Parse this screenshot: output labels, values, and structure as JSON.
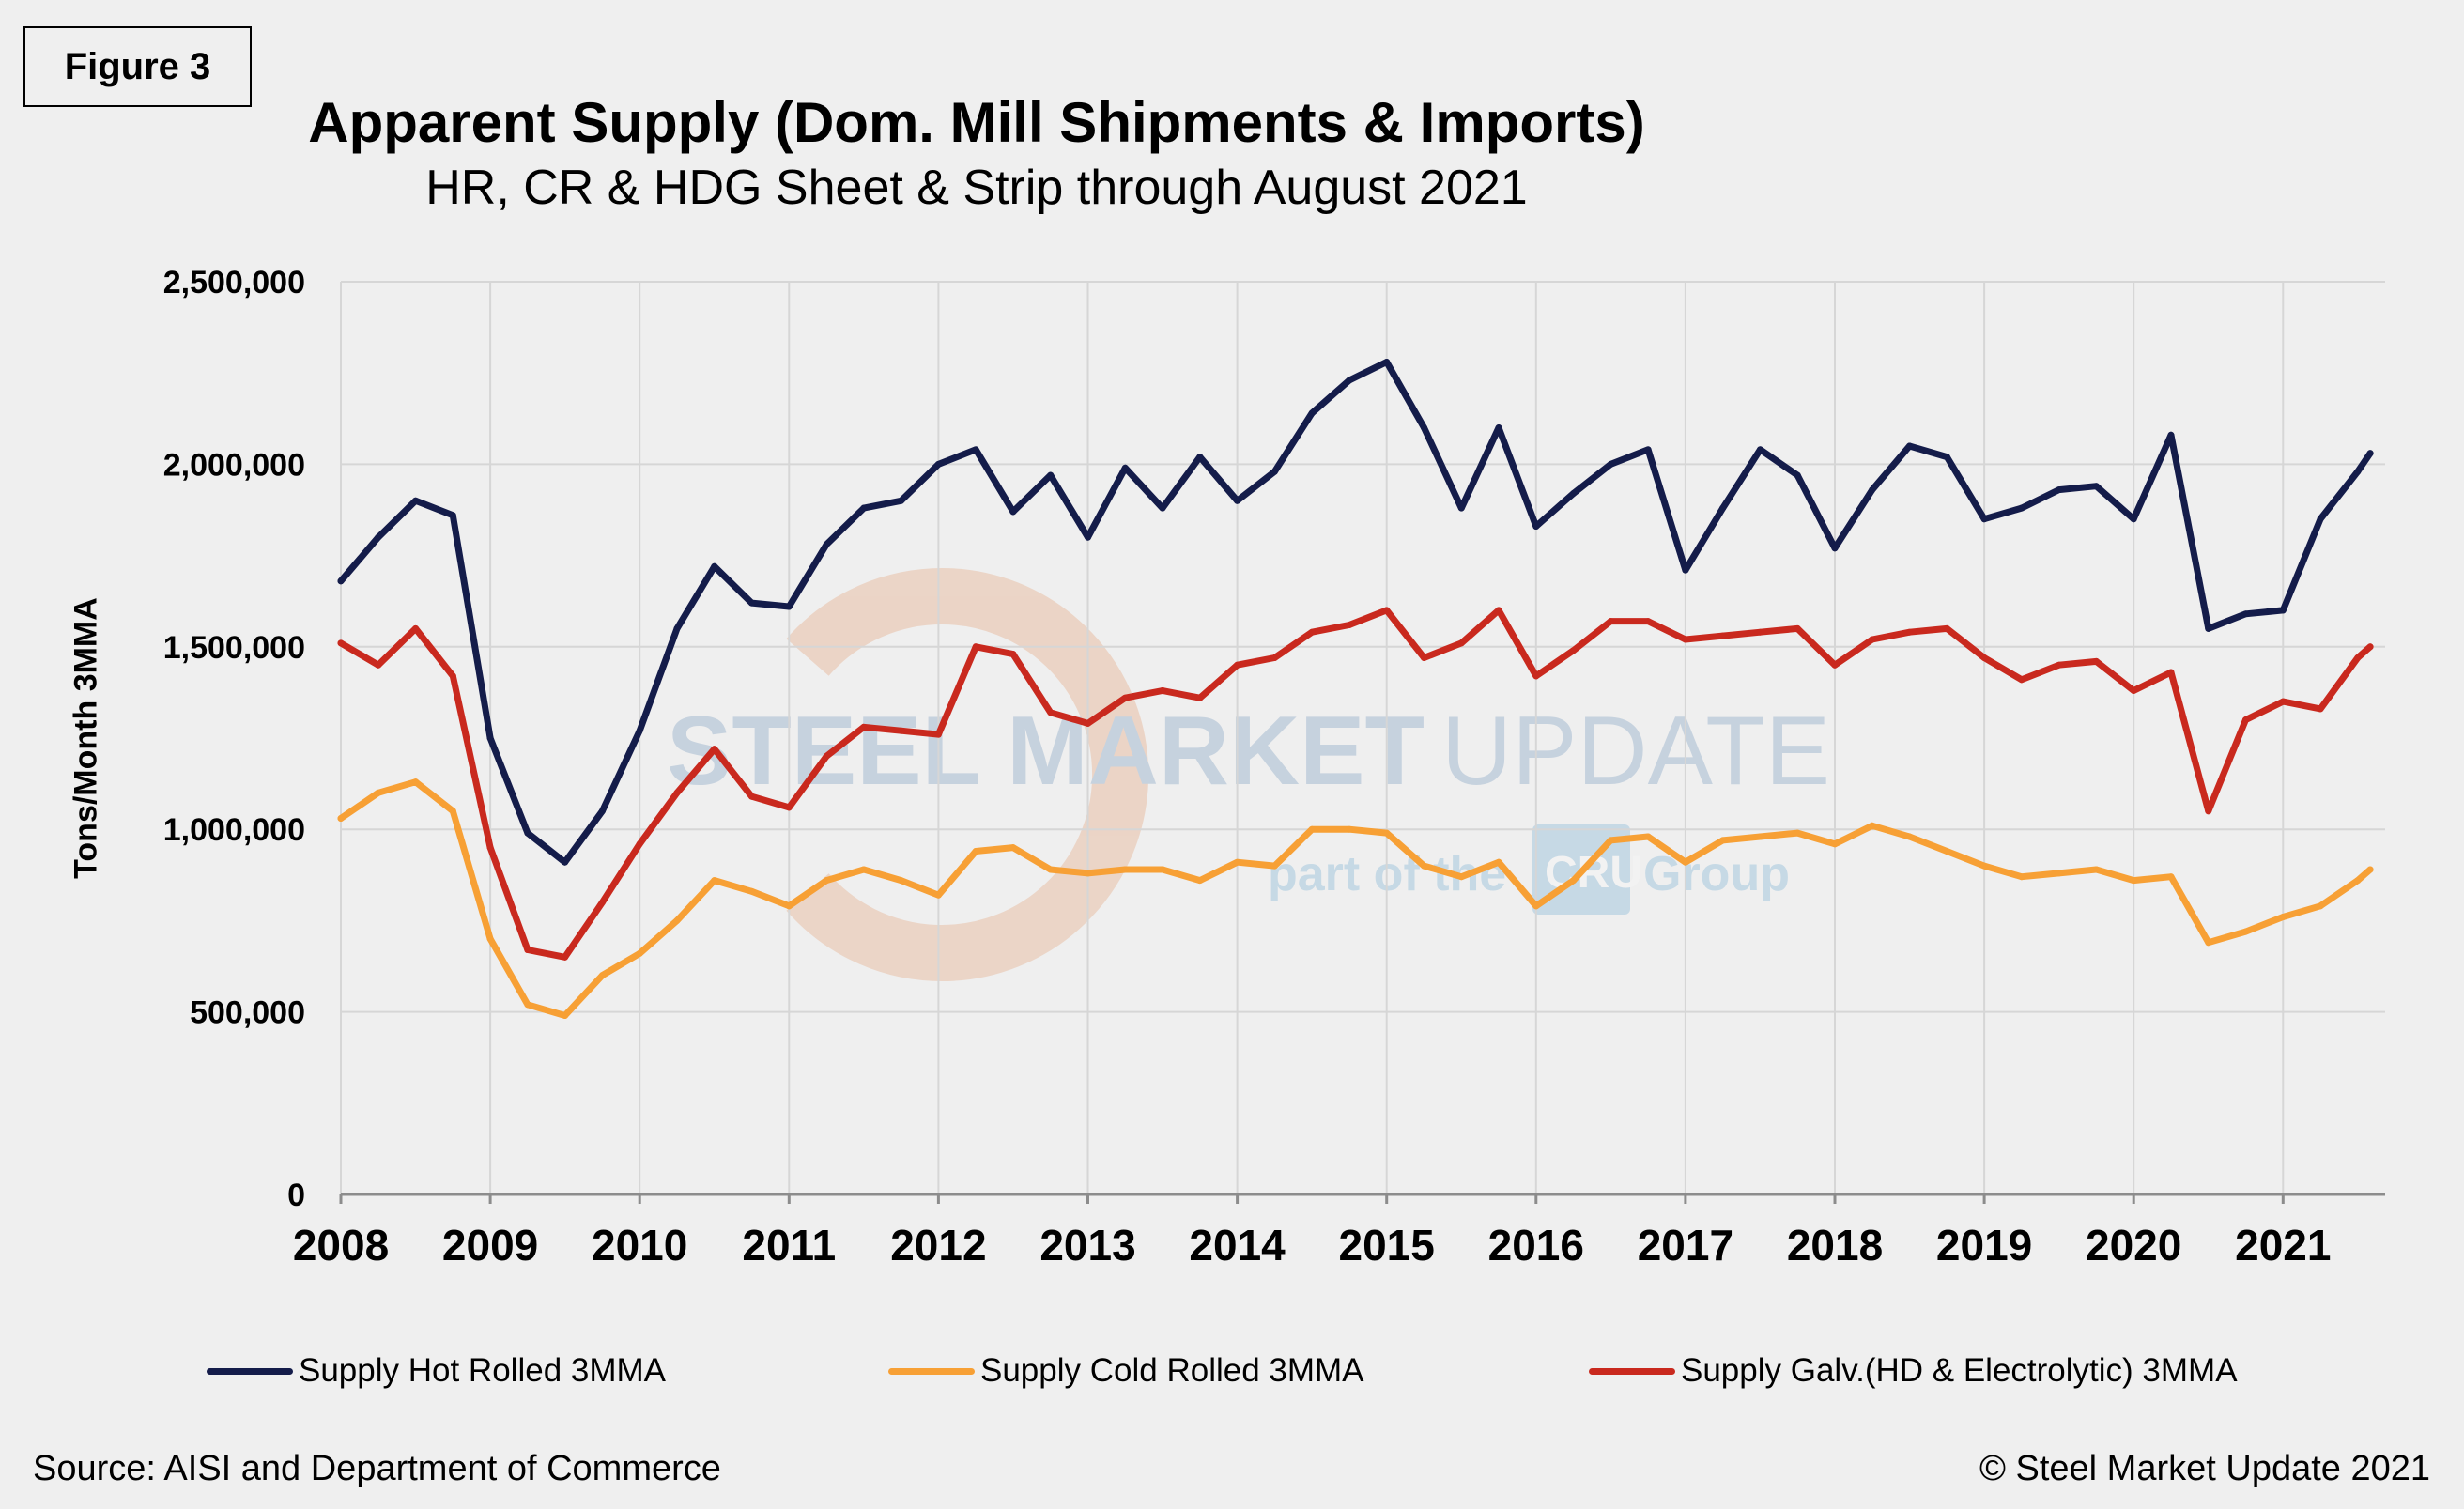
{
  "figure_label": "Figure 3",
  "source": "Source: AISI and Department of Commerce",
  "copyright": "© Steel Market Update 2021",
  "watermark": {
    "line1_bold": "STEEL MARKET",
    "line1_light": "UPDATE",
    "line2_a": "part of the",
    "line2_logo": "CRU",
    "line2_b": "Group"
  },
  "chart_data": {
    "type": "line",
    "title": "Apparent Supply (Dom. Mill Shipments & Imports)",
    "subtitle": "HR, CR & HDG Sheet & Strip through August 2021",
    "xlabel": "",
    "ylabel": "Tons/Month 3MMA",
    "ylim": [
      0,
      2500000
    ],
    "yticks": [
      "0",
      "500,000",
      "1,000,000",
      "1,500,000",
      "2,000,000",
      "2,500,000"
    ],
    "xticks": [
      "2008",
      "2009",
      "2010",
      "2011",
      "2012",
      "2013",
      "2014",
      "2015",
      "2016",
      "2017",
      "2018",
      "2019",
      "2020",
      "2021"
    ],
    "grid": true,
    "legend_position": "bottom",
    "x": [
      "2008-01",
      "2008-04",
      "2008-07",
      "2008-10",
      "2009-01",
      "2009-04",
      "2009-07",
      "2009-10",
      "2010-01",
      "2010-04",
      "2010-07",
      "2010-10",
      "2011-01",
      "2011-04",
      "2011-07",
      "2011-10",
      "2012-01",
      "2012-04",
      "2012-07",
      "2012-10",
      "2013-01",
      "2013-04",
      "2013-07",
      "2013-10",
      "2014-01",
      "2014-04",
      "2014-07",
      "2014-10",
      "2015-01",
      "2015-04",
      "2015-07",
      "2015-10",
      "2016-01",
      "2016-04",
      "2016-07",
      "2016-10",
      "2017-01",
      "2017-04",
      "2017-07",
      "2017-10",
      "2018-01",
      "2018-04",
      "2018-07",
      "2018-10",
      "2019-01",
      "2019-04",
      "2019-07",
      "2019-10",
      "2020-01",
      "2020-04",
      "2020-07",
      "2020-10",
      "2021-01",
      "2021-04",
      "2021-07",
      "2021-08"
    ],
    "series": [
      {
        "name": "Supply Hot Rolled 3MMA",
        "color": "#141c4a",
        "values": [
          1680000,
          1800000,
          1900000,
          1860000,
          1250000,
          990000,
          910000,
          1050000,
          1270000,
          1550000,
          1720000,
          1620000,
          1610000,
          1780000,
          1880000,
          1900000,
          2000000,
          2040000,
          1870000,
          1970000,
          1800000,
          1990000,
          1880000,
          2020000,
          1900000,
          1980000,
          2140000,
          2230000,
          2280000,
          2100000,
          1880000,
          2100000,
          1830000,
          1920000,
          2000000,
          2040000,
          1710000,
          1880000,
          2040000,
          1970000,
          1770000,
          1930000,
          2050000,
          2020000,
          1850000,
          1880000,
          1930000,
          1940000,
          1850000,
          2080000,
          1550000,
          1590000,
          1600000,
          1850000,
          1980000,
          2030000
        ]
      },
      {
        "name": "Supply Cold Rolled 3MMA",
        "color": "#f7a035",
        "values": [
          1030000,
          1100000,
          1130000,
          1050000,
          700000,
          520000,
          490000,
          600000,
          660000,
          750000,
          860000,
          830000,
          790000,
          860000,
          890000,
          860000,
          820000,
          940000,
          950000,
          890000,
          880000,
          890000,
          890000,
          860000,
          910000,
          900000,
          1000000,
          1000000,
          990000,
          900000,
          870000,
          910000,
          790000,
          860000,
          970000,
          980000,
          910000,
          970000,
          980000,
          990000,
          960000,
          1010000,
          980000,
          940000,
          900000,
          870000,
          880000,
          890000,
          860000,
          870000,
          690000,
          720000,
          760000,
          790000,
          860000,
          890000
        ]
      },
      {
        "name": "Supply Galv.(HD & Electrolytic) 3MMA",
        "color": "#c9291e",
        "values": [
          1510000,
          1450000,
          1550000,
          1420000,
          950000,
          670000,
          650000,
          800000,
          960000,
          1100000,
          1220000,
          1090000,
          1060000,
          1200000,
          1280000,
          1270000,
          1260000,
          1500000,
          1480000,
          1320000,
          1290000,
          1360000,
          1380000,
          1360000,
          1450000,
          1470000,
          1540000,
          1560000,
          1600000,
          1470000,
          1510000,
          1600000,
          1420000,
          1490000,
          1570000,
          1570000,
          1520000,
          1530000,
          1540000,
          1550000,
          1450000,
          1520000,
          1540000,
          1550000,
          1470000,
          1410000,
          1450000,
          1460000,
          1380000,
          1430000,
          1050000,
          1300000,
          1350000,
          1330000,
          1470000,
          1500000
        ]
      }
    ]
  }
}
